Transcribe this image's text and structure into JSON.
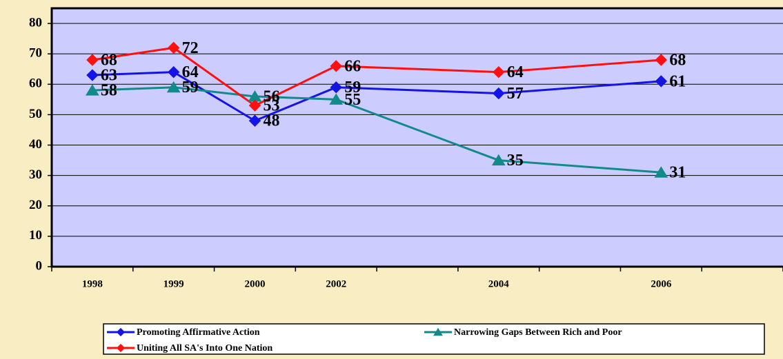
{
  "chart_data": {
    "type": "line",
    "categories": [
      "1998",
      "1999",
      "2000",
      "2002",
      null,
      "2004",
      null,
      "2006",
      null
    ],
    "connect_gaps": true,
    "series": [
      {
        "name": "Promoting Affirmative Action",
        "color": "#1414e6",
        "marker": "diamond",
        "values": [
          63,
          64,
          48,
          59,
          null,
          57,
          null,
          61,
          null
        ]
      },
      {
        "name": "Narrowing Gaps Between Rich and Poor",
        "color": "#138a8a",
        "marker": "triangle",
        "values": [
          58,
          59,
          56,
          55,
          null,
          35,
          null,
          31,
          null
        ]
      },
      {
        "name": "Uniting All SA's Into One Nation",
        "color": "#ff1010",
        "marker": "diamond",
        "values": [
          68,
          72,
          53,
          66,
          null,
          64,
          null,
          68,
          null
        ]
      }
    ],
    "ylim": [
      0,
      85
    ],
    "yticks": [
      0,
      10,
      20,
      30,
      40,
      50,
      60,
      70,
      80
    ],
    "grid": true,
    "data_labels": true,
    "legend": "bottom"
  }
}
